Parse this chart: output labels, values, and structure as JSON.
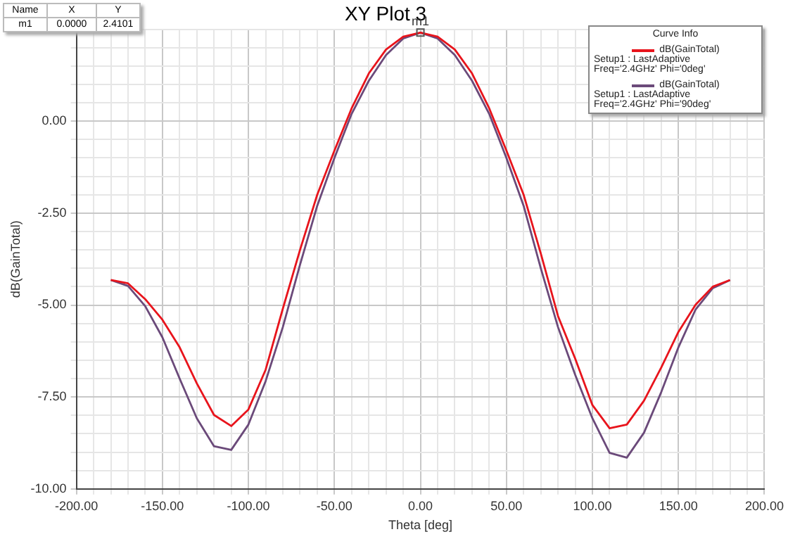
{
  "chart_data": {
    "type": "line",
    "title": "XY Plot 3",
    "xlabel": "Theta [deg]",
    "ylabel": "dB(GainTotal)",
    "legend_title": "Curve Info",
    "legend": "top right",
    "grid": true,
    "marker": "none",
    "line_style": "solid",
    "x": [
      -180,
      -170,
      -160,
      -150,
      -140,
      -130,
      -120,
      -110,
      -100,
      -90,
      -80,
      -70,
      -60,
      -50,
      -40,
      -30,
      -20,
      -10,
      0,
      10,
      20,
      30,
      40,
      50,
      60,
      70,
      80,
      90,
      100,
      110,
      120,
      130,
      140,
      150,
      160,
      170,
      180
    ],
    "series": [
      {
        "name": "dB(GainTotal)\nSetup1 : LastAdaptive\nFreq='2.4GHz' Phi='0deg'",
        "color": "#e8141c",
        "values": [
          -4.32,
          -4.41,
          -4.84,
          -5.4,
          -6.15,
          -7.13,
          -7.99,
          -8.29,
          -7.84,
          -6.76,
          -5.1,
          -3.5,
          -2.0,
          -0.8,
          0.35,
          1.3,
          1.95,
          2.3,
          2.41,
          2.3,
          1.95,
          1.3,
          0.35,
          -0.8,
          -2.0,
          -3.6,
          -5.3,
          -6.46,
          -7.72,
          -8.35,
          -8.25,
          -7.6,
          -6.7,
          -5.73,
          -4.99,
          -4.5,
          -4.32
        ]
      },
      {
        "name": "dB(GainTotal)\nSetup1 : LastAdaptive\nFreq='2.4GHz' Phi='90deg'",
        "color": "#6b4a7a",
        "values": [
          -4.32,
          -4.48,
          -5.03,
          -5.88,
          -7.0,
          -8.08,
          -8.84,
          -8.94,
          -8.25,
          -7.07,
          -5.6,
          -3.9,
          -2.3,
          -1.0,
          0.2,
          1.1,
          1.8,
          2.25,
          2.41,
          2.25,
          1.8,
          1.1,
          0.2,
          -1.0,
          -2.3,
          -4.0,
          -5.6,
          -6.9,
          -8.08,
          -9.02,
          -9.15,
          -8.47,
          -7.37,
          -6.15,
          -5.12,
          -4.54,
          -4.32
        ]
      }
    ],
    "xlim": [
      -200,
      200
    ],
    "xticks": [
      {
        "value": -200,
        "label": "-200.00"
      },
      {
        "value": -190,
        "label": null
      },
      {
        "value": -180,
        "label": null
      },
      {
        "value": -170,
        "label": null
      },
      {
        "value": -160,
        "label": null
      },
      {
        "value": -150,
        "label": "-150.00"
      },
      {
        "value": -140,
        "label": null
      },
      {
        "value": -130,
        "label": null
      },
      {
        "value": -120,
        "label": null
      },
      {
        "value": -110,
        "label": null
      },
      {
        "value": -100,
        "label": "-100.00"
      },
      {
        "value": -90,
        "label": null
      },
      {
        "value": -80,
        "label": null
      },
      {
        "value": -70,
        "label": null
      },
      {
        "value": -60,
        "label": null
      },
      {
        "value": -50,
        "label": "-50.00"
      },
      {
        "value": -40,
        "label": null
      },
      {
        "value": -30,
        "label": null
      },
      {
        "value": -20,
        "label": null
      },
      {
        "value": -10,
        "label": null
      },
      {
        "value": 0,
        "label": "0.00"
      },
      {
        "value": 10,
        "label": null
      },
      {
        "value": 20,
        "label": null
      },
      {
        "value": 30,
        "label": null
      },
      {
        "value": 40,
        "label": null
      },
      {
        "value": 50,
        "label": "50.00"
      },
      {
        "value": 60,
        "label": null
      },
      {
        "value": 70,
        "label": null
      },
      {
        "value": 80,
        "label": null
      },
      {
        "value": 90,
        "label": null
      },
      {
        "value": 100,
        "label": "100.00"
      },
      {
        "value": 110,
        "label": null
      },
      {
        "value": 120,
        "label": null
      },
      {
        "value": 130,
        "label": null
      },
      {
        "value": 140,
        "label": null
      },
      {
        "value": 150,
        "label": "150.00"
      },
      {
        "value": 160,
        "label": null
      },
      {
        "value": 170,
        "label": null
      },
      {
        "value": 180,
        "label": null
      },
      {
        "value": 190,
        "label": null
      },
      {
        "value": 200,
        "label": "200.00"
      }
    ],
    "ylim": [
      -10,
      2.5
    ],
    "yticks": [
      {
        "value": -10,
        "label": "-10.00"
      },
      {
        "value": -9.5,
        "label": null
      },
      {
        "value": -9,
        "label": null
      },
      {
        "value": -8.5,
        "label": null
      },
      {
        "value": -8,
        "label": null
      },
      {
        "value": -7.5,
        "label": "-7.50"
      },
      {
        "value": -7,
        "label": null
      },
      {
        "value": -6.5,
        "label": null
      },
      {
        "value": -6,
        "label": null
      },
      {
        "value": -5.5,
        "label": null
      },
      {
        "value": -5,
        "label": "-5.00"
      },
      {
        "value": -4.5,
        "label": null
      },
      {
        "value": -4,
        "label": null
      },
      {
        "value": -3.5,
        "label": null
      },
      {
        "value": -3,
        "label": null
      },
      {
        "value": -2.5,
        "label": "-2.50"
      },
      {
        "value": -2,
        "label": null
      },
      {
        "value": -1.5,
        "label": null
      },
      {
        "value": -1,
        "label": null
      },
      {
        "value": -0.5,
        "label": null
      },
      {
        "value": 0,
        "label": "0.00"
      },
      {
        "value": 0.5,
        "label": null
      },
      {
        "value": 1,
        "label": null
      },
      {
        "value": 1.5,
        "label": null
      },
      {
        "value": 2,
        "label": null
      },
      {
        "value": 2.5,
        "label": null
      }
    ],
    "annotations": [
      "Name",
      "X",
      "Y",
      "m1",
      "0.0000",
      "2.4101",
      {
        "text": "m1",
        "x": 0,
        "y": 2.4101
      }
    ]
  }
}
